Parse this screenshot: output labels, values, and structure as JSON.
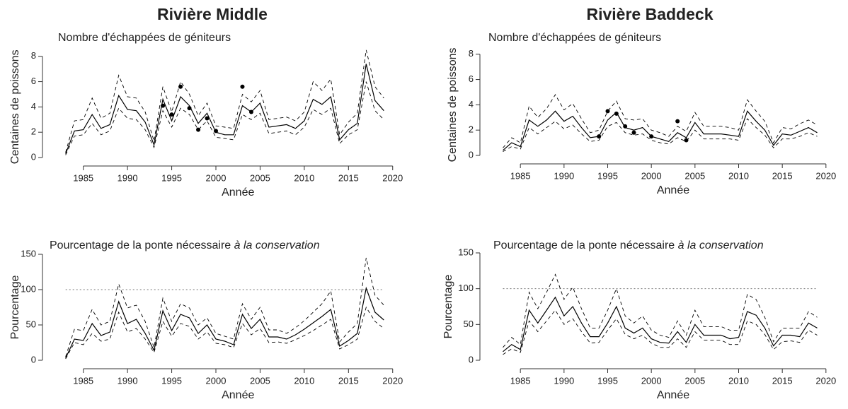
{
  "chart_data": [
    {
      "type": "line",
      "title": "Rivière Middle",
      "subtitle": "Nombre d'échappées de géniteurs",
      "xlabel": "Année",
      "ylabel": "Centaines de poissons",
      "x": [
        1983,
        1984,
        1985,
        1986,
        1987,
        1988,
        1989,
        1990,
        1991,
        1992,
        1993,
        1994,
        1995,
        1996,
        1997,
        1998,
        1999,
        2000,
        2001,
        2002,
        2003,
        2004,
        2005,
        2006,
        2007,
        2008,
        2009,
        2010,
        2011,
        2012,
        2013,
        2014,
        2015,
        2016,
        2017,
        2018,
        2019
      ],
      "xlim": [
        1981.5,
        2020.5
      ],
      "xticks": [
        1985,
        1990,
        1995,
        2000,
        2005,
        2010,
        2015,
        2020
      ],
      "ylim": [
        0,
        8.6
      ],
      "yticks": [
        0,
        2,
        4,
        6,
        8
      ],
      "series": [
        {
          "style": "solid",
          "color": "#000000",
          "values": [
            0.3,
            2.1,
            2.2,
            3.4,
            2.3,
            2.6,
            4.9,
            3.8,
            3.7,
            2.8,
            1.0,
            4.6,
            2.9,
            4.8,
            4.1,
            2.7,
            3.5,
            2.0,
            1.8,
            1.8,
            4.1,
            3.6,
            4.3,
            2.4,
            2.5,
            2.6,
            2.3,
            2.9,
            4.6,
            4.2,
            4.8,
            1.4,
            2.2,
            2.7,
            7.4,
            4.5,
            3.7
          ]
        },
        {
          "style": "dashed",
          "color": "#000000",
          "values": [
            0.2,
            1.7,
            1.8,
            2.7,
            1.8,
            2.1,
            3.9,
            3.1,
            3.0,
            2.2,
            0.8,
            3.7,
            2.4,
            3.9,
            3.4,
            2.2,
            2.9,
            1.6,
            1.5,
            1.4,
            3.4,
            3.0,
            3.5,
            1.9,
            2.0,
            2.1,
            1.8,
            2.4,
            3.8,
            3.4,
            3.9,
            1.1,
            1.8,
            2.2,
            6.0,
            3.7,
            3.0
          ]
        },
        {
          "style": "dashed",
          "color": "#000000",
          "values": [
            0.4,
            2.9,
            3.0,
            4.7,
            3.1,
            3.5,
            6.5,
            4.8,
            4.7,
            3.6,
            1.3,
            5.6,
            3.6,
            6.0,
            5.0,
            3.3,
            4.3,
            2.5,
            2.4,
            2.3,
            5.0,
            4.4,
            5.3,
            3.0,
            3.1,
            3.2,
            2.9,
            3.6,
            6.0,
            5.3,
            6.2,
            1.8,
            2.8,
            3.5,
            8.5,
            5.6,
            4.7
          ]
        },
        {
          "type": "scatter",
          "color": "#000000",
          "x": [
            1994,
            1995,
            1996,
            1997,
            1998,
            1999,
            2000,
            2003,
            2004
          ],
          "values": [
            4.1,
            3.4,
            5.6,
            3.9,
            2.2,
            3.1,
            2.1,
            5.6,
            3.6
          ]
        }
      ]
    },
    {
      "type": "line",
      "title": "Rivière Baddeck",
      "subtitle": "Nombre d'échappées de géniteurs",
      "xlabel": "Année",
      "ylabel": "Centaines de poissons",
      "x": [
        1983,
        1984,
        1985,
        1986,
        1987,
        1988,
        1989,
        1990,
        1991,
        1992,
        1993,
        1994,
        1995,
        1996,
        1997,
        1998,
        1999,
        2000,
        2001,
        2002,
        2003,
        2004,
        2005,
        2006,
        2007,
        2008,
        2009,
        2010,
        2011,
        2012,
        2013,
        2014,
        2015,
        2016,
        2017,
        2018,
        2019
      ],
      "xlim": [
        1981.5,
        2020.5
      ],
      "xticks": [
        1985,
        1990,
        1995,
        2000,
        2005,
        2010,
        2015,
        2020
      ],
      "ylim": [
        0,
        8.6
      ],
      "yticks": [
        0,
        2,
        4,
        6,
        8
      ],
      "series": [
        {
          "style": "solid",
          "color": "#000000",
          "values": [
            0.4,
            1.0,
            0.7,
            2.8,
            2.3,
            2.8,
            3.5,
            2.7,
            3.1,
            2.2,
            1.4,
            1.5,
            2.8,
            3.4,
            2.2,
            2.0,
            2.2,
            1.5,
            1.3,
            1.1,
            1.8,
            1.4,
            2.6,
            1.7,
            1.7,
            1.7,
            1.6,
            1.5,
            3.5,
            2.7,
            2.0,
            0.8,
            1.7,
            1.6,
            1.9,
            2.2,
            1.8
          ]
        },
        {
          "style": "dashed",
          "color": "#000000",
          "values": [
            0.3,
            0.7,
            0.5,
            2.2,
            1.7,
            2.2,
            2.7,
            2.1,
            2.4,
            1.7,
            1.1,
            1.2,
            2.3,
            2.6,
            1.8,
            1.6,
            1.7,
            1.2,
            1.0,
            0.9,
            1.4,
            1.1,
            2.0,
            1.3,
            1.3,
            1.3,
            1.3,
            1.2,
            2.9,
            2.2,
            1.6,
            0.6,
            1.3,
            1.3,
            1.5,
            1.8,
            1.5
          ]
        },
        {
          "style": "dashed",
          "color": "#000000",
          "values": [
            0.6,
            1.4,
            1.0,
            3.9,
            3.0,
            3.7,
            4.8,
            3.6,
            4.1,
            2.9,
            1.8,
            2.0,
            3.5,
            4.3,
            2.9,
            2.8,
            2.9,
            2.0,
            1.8,
            1.5,
            2.3,
            1.9,
            3.4,
            2.3,
            2.3,
            2.3,
            2.2,
            2.0,
            4.4,
            3.5,
            2.7,
            1.0,
            2.2,
            2.1,
            2.5,
            2.8,
            2.4
          ]
        },
        {
          "type": "scatter",
          "color": "#000000",
          "x": [
            1994,
            1995,
            1996,
            1997,
            1998,
            2000,
            2003,
            2004
          ],
          "values": [
            1.5,
            3.5,
            3.3,
            2.3,
            1.8,
            1.5,
            2.7,
            1.2
          ]
        }
      ]
    },
    {
      "type": "line",
      "subtitle": "Pourcentage de la ponte nécessaire",
      "subtitle_italic": "à la conservation",
      "xlabel": "Année",
      "ylabel": "Pourcentage",
      "x": [
        1983,
        1984,
        1985,
        1986,
        1987,
        1988,
        1989,
        1990,
        1991,
        1992,
        1993,
        1994,
        1995,
        1996,
        1997,
        1998,
        1999,
        2000,
        2001,
        2002,
        2003,
        2004,
        2005,
        2006,
        2007,
        2008,
        2009,
        2010,
        2011,
        2012,
        2013,
        2014,
        2015,
        2016,
        2017,
        2018,
        2019
      ],
      "xlim": [
        1981.5,
        2020.5
      ],
      "xticks": [
        1985,
        1990,
        1995,
        2000,
        2005,
        2010,
        2015,
        2020
      ],
      "ylim": [
        0,
        150
      ],
      "yticks": [
        0,
        50,
        100,
        150
      ],
      "reference_line": {
        "value": 100,
        "style": "dotted",
        "color": "#777777"
      },
      "series": [
        {
          "style": "solid",
          "color": "#000000",
          "values": [
            3,
            30,
            28,
            52,
            35,
            40,
            83,
            52,
            58,
            38,
            14,
            70,
            42,
            65,
            60,
            38,
            50,
            30,
            27,
            22,
            65,
            45,
            58,
            33,
            33,
            30,
            36,
            44,
            53,
            62,
            72,
            20,
            28,
            38,
            102,
            68,
            57
          ]
        },
        {
          "style": "dashed",
          "color": "#000000",
          "values": [
            2,
            25,
            22,
            38,
            27,
            30,
            68,
            40,
            45,
            30,
            11,
            55,
            34,
            52,
            48,
            30,
            40,
            24,
            22,
            18,
            52,
            36,
            45,
            25,
            26,
            24,
            29,
            35,
            42,
            50,
            58,
            16,
            22,
            30,
            75,
            55,
            45
          ]
        },
        {
          "style": "dashed",
          "color": "#000000",
          "values": [
            5,
            44,
            42,
            72,
            50,
            55,
            108,
            74,
            78,
            55,
            18,
            88,
            55,
            80,
            74,
            50,
            60,
            38,
            34,
            30,
            80,
            58,
            75,
            43,
            43,
            38,
            46,
            56,
            68,
            80,
            98,
            26,
            40,
            52,
            145,
            92,
            78
          ]
        }
      ]
    },
    {
      "type": "line",
      "subtitle": "Pourcentage de la ponte nécessaire",
      "subtitle_italic": "à la conservation",
      "xlabel": "Année",
      "ylabel": "Pourcentage",
      "x": [
        1983,
        1984,
        1985,
        1986,
        1987,
        1988,
        1989,
        1990,
        1991,
        1992,
        1993,
        1994,
        1995,
        1996,
        1997,
        1998,
        1999,
        2000,
        2001,
        2002,
        2003,
        2004,
        2005,
        2006,
        2007,
        2008,
        2009,
        2010,
        2011,
        2012,
        2013,
        2014,
        2015,
        2016,
        2017,
        2018,
        2019
      ],
      "xlim": [
        1981.5,
        2020.5
      ],
      "xticks": [
        1985,
        1990,
        1995,
        2000,
        2005,
        2010,
        2015,
        2020
      ],
      "ylim": [
        0,
        150
      ],
      "yticks": [
        0,
        50,
        100,
        150
      ],
      "reference_line": {
        "value": 100,
        "style": "dotted",
        "color": "#777777"
      },
      "series": [
        {
          "style": "solid",
          "color": "#000000",
          "values": [
            12,
            22,
            15,
            70,
            52,
            70,
            88,
            62,
            75,
            52,
            33,
            33,
            52,
            75,
            45,
            38,
            45,
            30,
            25,
            24,
            40,
            25,
            50,
            35,
            35,
            35,
            30,
            32,
            68,
            63,
            45,
            20,
            35,
            35,
            33,
            52,
            45
          ]
        },
        {
          "style": "dashed",
          "color": "#000000",
          "values": [
            8,
            16,
            11,
            55,
            40,
            55,
            70,
            50,
            58,
            40,
            24,
            25,
            42,
            58,
            36,
            30,
            35,
            24,
            18,
            18,
            30,
            18,
            40,
            28,
            28,
            28,
            22,
            22,
            55,
            50,
            36,
            15,
            26,
            27,
            25,
            42,
            35
          ]
        },
        {
          "style": "dashed",
          "color": "#000000",
          "values": [
            18,
            32,
            22,
            95,
            72,
            95,
            120,
            85,
            102,
            72,
            45,
            45,
            70,
            100,
            62,
            52,
            62,
            42,
            35,
            32,
            55,
            35,
            70,
            47,
            47,
            47,
            42,
            42,
            92,
            85,
            60,
            26,
            45,
            45,
            45,
            68,
            60
          ]
        }
      ]
    }
  ]
}
